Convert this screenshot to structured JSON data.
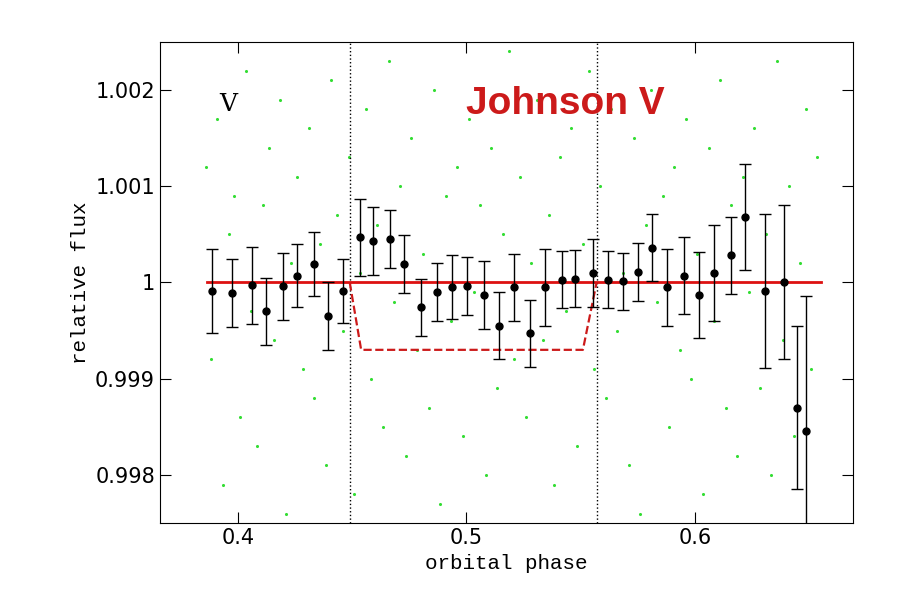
{
  "chart_data": {
    "type": "scatter",
    "x_label": "orbital phase",
    "y_label": "relative flux",
    "annotations": [
      {
        "text": "V",
        "x": 0.392,
        "y": 1.00185,
        "color": "#000000"
      },
      {
        "text": "Johnson V",
        "x": 0.5,
        "y": 1.00185,
        "color": "#cc1a1a"
      }
    ],
    "xlim": [
      0.366,
      0.669
    ],
    "ylim": [
      0.9975,
      1.0025
    ],
    "xticks": [
      0.4,
      0.5,
      0.6
    ],
    "yticks": [
      0.998,
      0.999,
      1,
      1.001,
      1.002
    ],
    "grid": false,
    "vlines": [
      0.449,
      0.557
    ],
    "vline_style": "dotted",
    "series": [
      {
        "type": "scatter",
        "color": "#33dd33",
        "marker": "o",
        "x": [
          0.386,
          0.3885,
          0.391,
          0.3935,
          0.396,
          0.3985,
          0.401,
          0.4035,
          0.406,
          0.4085,
          0.411,
          0.4135,
          0.416,
          0.4185,
          0.421,
          0.4235,
          0.426,
          0.4285,
          0.431,
          0.4335,
          0.436,
          0.4385,
          0.441,
          0.4435,
          0.446,
          0.4485,
          0.451,
          0.4535,
          0.456,
          0.4585,
          0.461,
          0.4635,
          0.466,
          0.4685,
          0.471,
          0.4735,
          0.476,
          0.4785,
          0.481,
          0.4835,
          0.486,
          0.4885,
          0.491,
          0.4935,
          0.496,
          0.4985,
          0.501,
          0.5035,
          0.506,
          0.5085,
          0.511,
          0.5135,
          0.516,
          0.5185,
          0.521,
          0.5235,
          0.526,
          0.5285,
          0.531,
          0.5335,
          0.536,
          0.5385,
          0.541,
          0.5435,
          0.546,
          0.5485,
          0.551,
          0.5535,
          0.556,
          0.5585,
          0.561,
          0.5635,
          0.566,
          0.5685,
          0.571,
          0.5735,
          0.576,
          0.5785,
          0.581,
          0.5835,
          0.586,
          0.5885,
          0.591,
          0.5935,
          0.596,
          0.5985,
          0.601,
          0.6035,
          0.606,
          0.6085,
          0.611,
          0.6135,
          0.616,
          0.6185,
          0.621,
          0.6235,
          0.626,
          0.6285,
          0.631,
          0.6335,
          0.636,
          0.6385,
          0.641,
          0.6435,
          0.646,
          0.6485,
          0.651,
          0.6535
        ],
        "values": [
          1.0012,
          0.9992,
          1.0017,
          0.9979,
          1.0005,
          1.0009,
          0.9986,
          1.0022,
          0.9997,
          0.9983,
          1.0008,
          1.0014,
          0.9994,
          1.0019,
          0.9976,
          1.0002,
          1.0011,
          0.9991,
          1.0016,
          0.9988,
          1.0004,
          0.9981,
          1.0021,
          1.0007,
          0.9995,
          1.0013,
          0.9978,
          1.0001,
          1.0018,
          0.999,
          1.0006,
          0.9985,
          1.0023,
          0.9998,
          1.001,
          0.9982,
          1.0015,
          0.9993,
          1.0003,
          0.9987,
          1.002,
          0.9977,
          1.0009,
          0.9996,
          1.0012,
          0.9984,
          1.0017,
          0.9999,
          1.0008,
          0.998,
          1.0014,
          0.9989,
          1.0005,
          1.0024,
          0.9992,
          1.0011,
          0.9986,
          1.0002,
          1.0019,
          0.9994,
          1.0007,
          0.9979,
          1.0013,
          0.9997,
          1.0016,
          0.9983,
          1.0004,
          1.0022,
          0.9991,
          1.001,
          0.9988,
          1.0018,
          0.9995,
          1.0001,
          0.9981,
          1.0015,
          0.9976,
          1.0006,
          1.002,
          0.9998,
          1.0009,
          0.9985,
          1.0012,
          0.9993,
          1.0017,
          0.999,
          1.0003,
          0.9978,
          1.0014,
          0.9996,
          1.0021,
          0.9987,
          1.0008,
          0.9982,
          1.0011,
          0.9999,
          1.0016,
          0.9989,
          1.0005,
          0.998,
          1.0023,
          0.9994,
          1.001,
          0.9984,
          1.0002,
          1.0018,
          0.9991,
          1.0013
        ]
      },
      {
        "type": "errorbar",
        "color": "#000000",
        "marker": "o",
        "x": [
          0.3887,
          0.3974,
          0.4061,
          0.4122,
          0.4197,
          0.4258,
          0.4332,
          0.4397,
          0.4459,
          0.4533,
          0.4594,
          0.4668,
          0.4729,
          0.4803,
          0.4873,
          0.4939,
          0.5004,
          0.5079,
          0.5144,
          0.521,
          0.5279,
          0.5345,
          0.5419,
          0.5476,
          0.5555,
          0.562,
          0.5686,
          0.5751,
          0.5812,
          0.5878,
          0.5952,
          0.6017,
          0.6083,
          0.6157,
          0.6218,
          0.6306,
          0.6389,
          0.6446,
          0.6485
        ],
        "values": [
          0.99991,
          0.99989,
          0.99997,
          0.9997,
          0.99996,
          1.00007,
          1.00019,
          0.99965,
          0.99991,
          1.00047,
          1.00043,
          1.00045,
          1.00019,
          0.99974,
          0.9999,
          0.99995,
          0.99996,
          0.99987,
          0.99955,
          0.99995,
          0.99947,
          0.99995,
          1.00003,
          1.00004,
          1.0001,
          1.00003,
          1.00001,
          1.00011,
          1.00036,
          0.99995,
          1.00007,
          0.99987,
          1.0001,
          1.00028,
          1.00068,
          0.99991,
          1.0,
          0.9987,
          0.99846
        ],
        "errors": [
          0.00044,
          0.00035,
          0.0004,
          0.00035,
          0.00035,
          0.00033,
          0.00033,
          0.00035,
          0.00033,
          0.0004,
          0.00035,
          0.0003,
          0.0003,
          0.0003,
          0.0003,
          0.00033,
          0.0003,
          0.00035,
          0.00035,
          0.00035,
          0.00035,
          0.0004,
          0.0003,
          0.0003,
          0.00035,
          0.0003,
          0.0003,
          0.0003,
          0.00035,
          0.0004,
          0.0004,
          0.00045,
          0.0005,
          0.0004,
          0.00055,
          0.0008,
          0.0008,
          0.00085,
          0.0014
        ]
      },
      {
        "type": "line",
        "color": "#dd1111",
        "line_style": "solid",
        "x": [
          0.3865,
          0.655
        ],
        "values": [
          1,
          1
        ]
      },
      {
        "type": "line",
        "color": "#cc1a1a",
        "line_style": "dashed",
        "x": [
          0.449,
          0.454,
          0.551,
          0.557
        ],
        "values": [
          1,
          0.9993,
          0.9993,
          1
        ]
      }
    ]
  }
}
